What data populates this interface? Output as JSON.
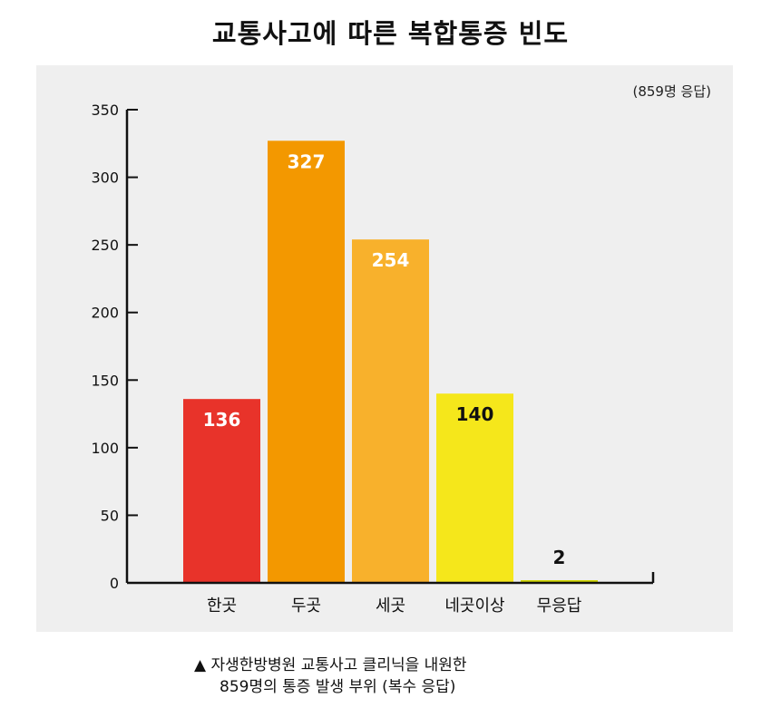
{
  "chart_data": {
    "type": "bar",
    "title": "교통사고에 따른 복합통증 빈도",
    "note": "(859명 응답)",
    "categories": [
      "한곳",
      "두곳",
      "세곳",
      "네곳이상",
      "무응답"
    ],
    "values": [
      136,
      327,
      254,
      140,
      2
    ],
    "data_labels": [
      "136",
      "327",
      "254",
      "140",
      "2"
    ],
    "colors": [
      "#e8332a",
      "#f39800",
      "#f8b12c",
      "#f5e71b",
      "#cfd600"
    ],
    "label_colors": [
      "#ffffff",
      "#ffffff",
      "#ffffff",
      "#111111",
      "#111111"
    ],
    "ylim": [
      0,
      350
    ],
    "yticks": [
      0,
      50,
      100,
      150,
      200,
      250,
      300,
      350
    ],
    "ytick_labels": [
      "0",
      "50",
      "100",
      "150",
      "200",
      "250",
      "300",
      "350"
    ],
    "grid": false,
    "legend": "none"
  },
  "caption": {
    "line1": "▲ 자생한방병원 교통사고 클리닉을 내원한",
    "line2": "859명의 통증 발생 부위 (복수 응답)"
  }
}
